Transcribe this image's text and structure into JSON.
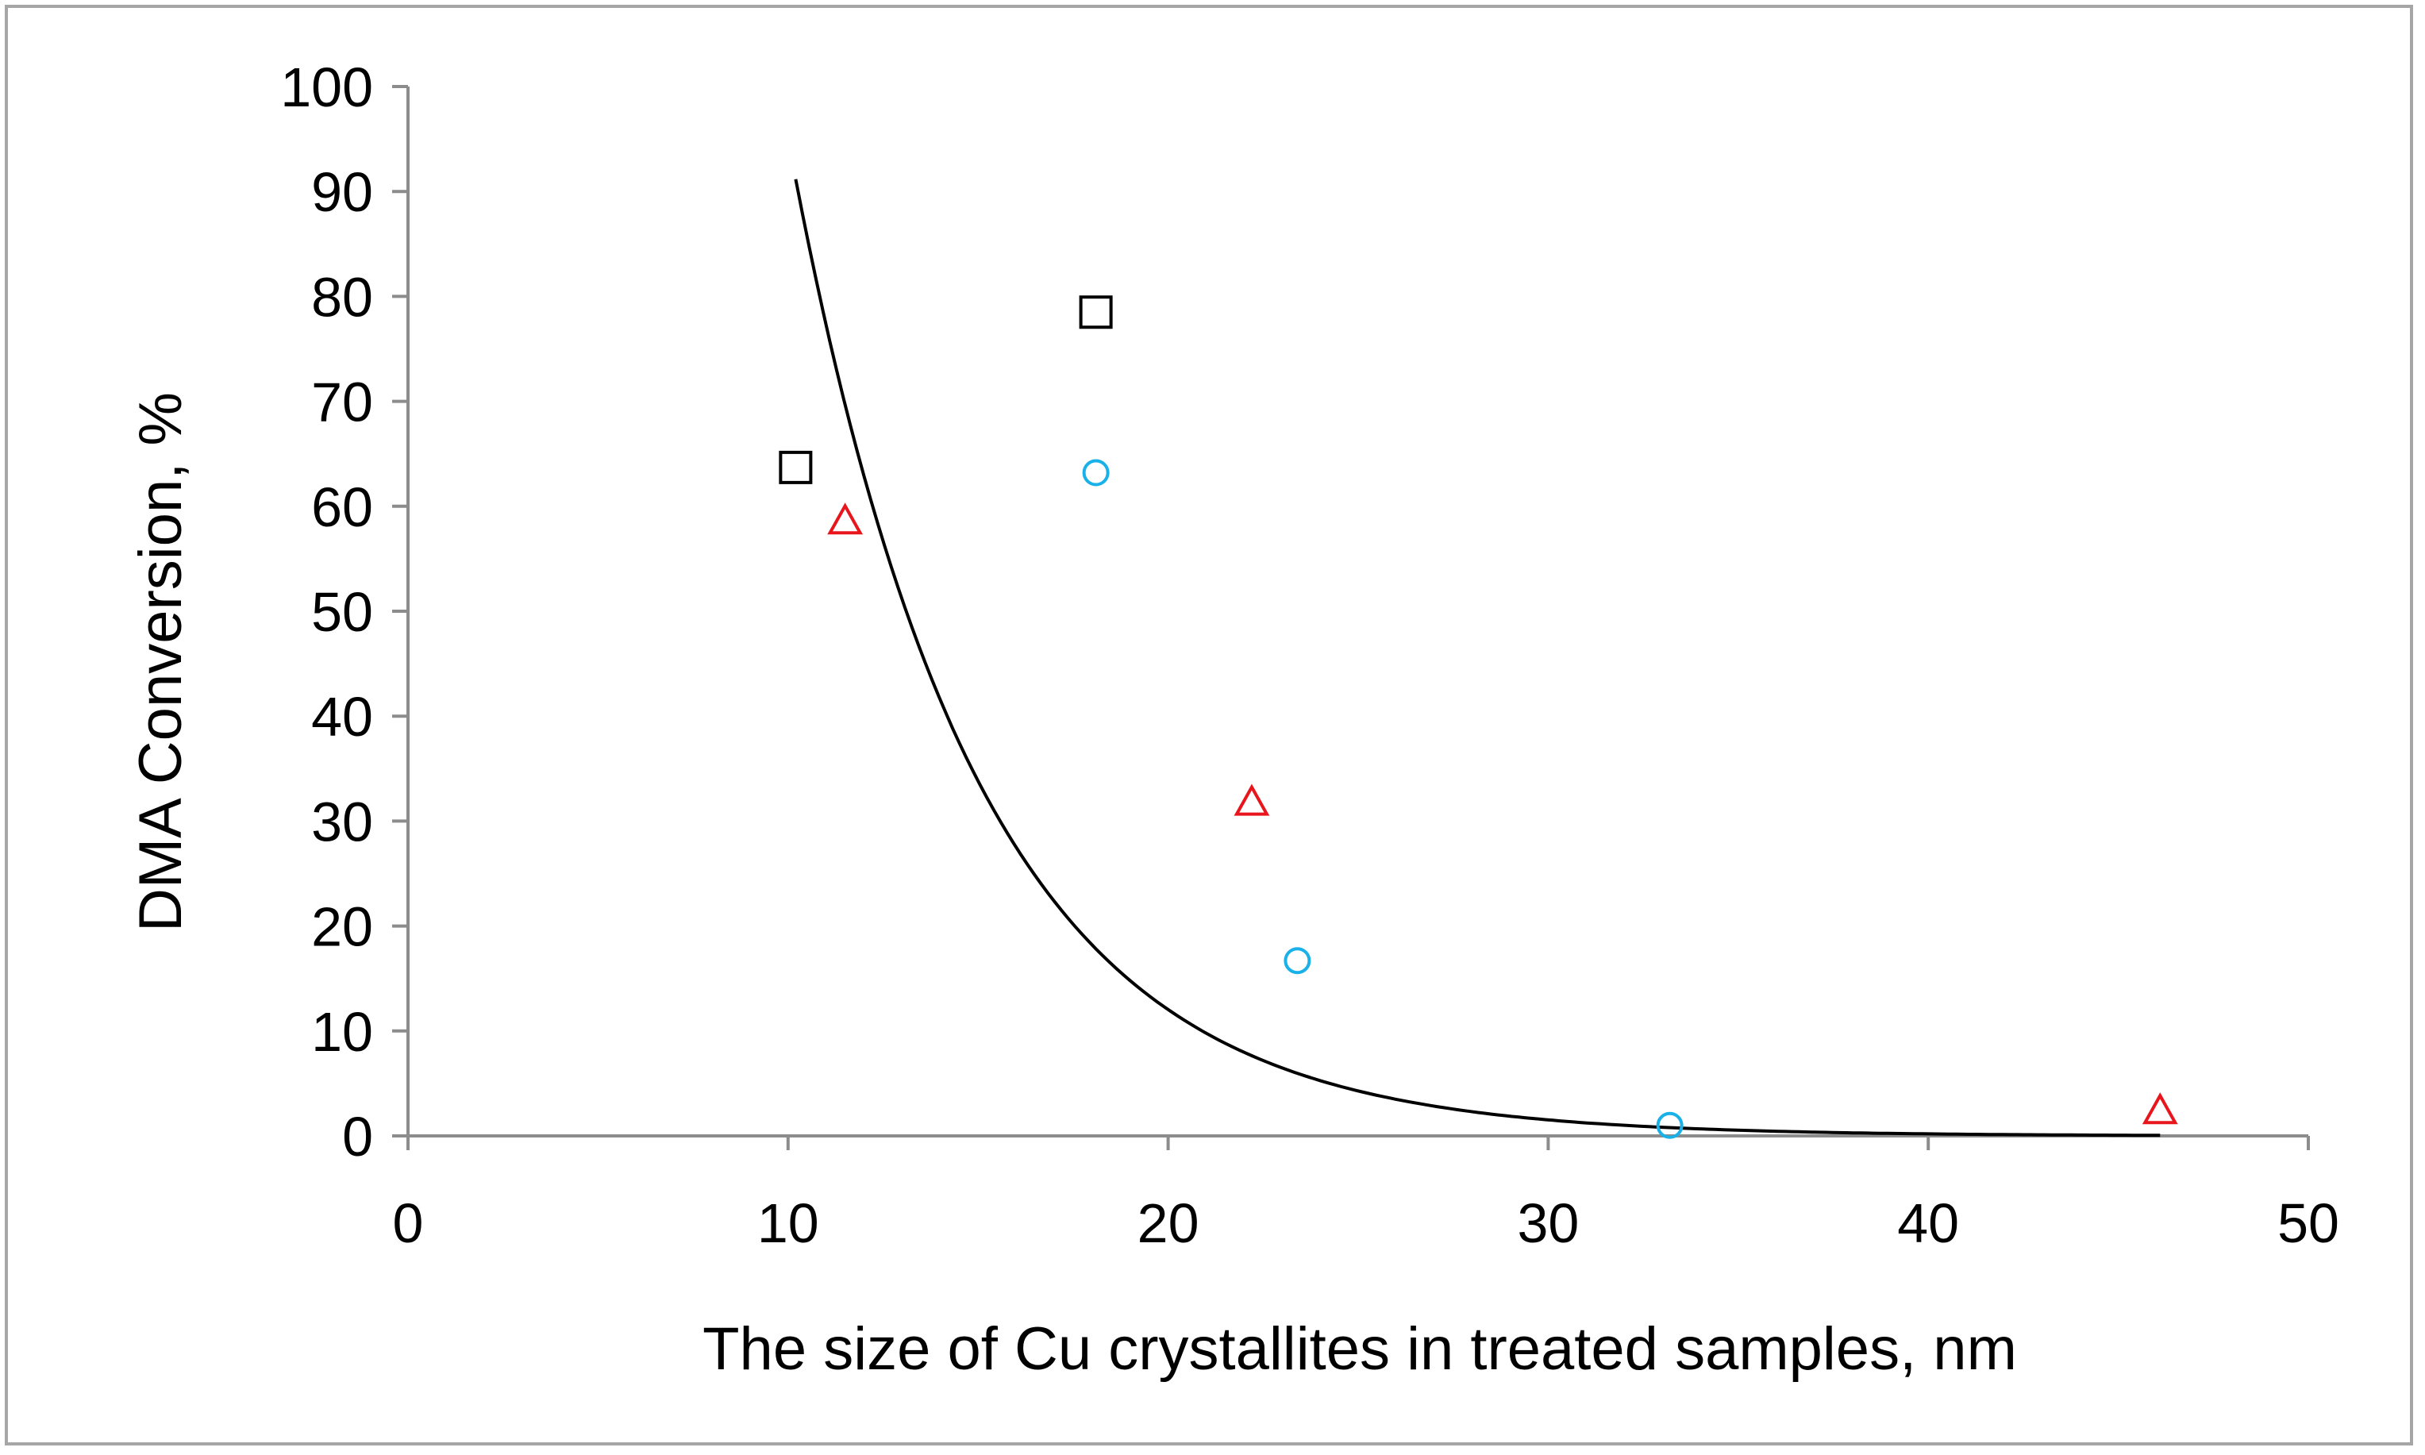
{
  "chart_data": {
    "type": "scatter",
    "title": "",
    "xlabel": "The size of Cu crystallites in treated samples, nm",
    "ylabel": "DMA Conversion, %",
    "xlim": [
      0,
      50
    ],
    "ylim": [
      0,
      100
    ],
    "xticks": [
      0,
      10,
      20,
      30,
      40,
      50
    ],
    "yticks": [
      0,
      10,
      20,
      30,
      40,
      50,
      60,
      70,
      80,
      90,
      100
    ],
    "grid": false,
    "legend": "none",
    "series": [
      {
        "name": "squares",
        "marker": "square",
        "color": "#000000",
        "points": [
          {
            "x": 10.2,
            "y": 63.7
          },
          {
            "x": 18.1,
            "y": 78.5
          }
        ]
      },
      {
        "name": "circles",
        "marker": "circle",
        "color": "#1ab0e8",
        "points": [
          {
            "x": 18.1,
            "y": 63.2
          },
          {
            "x": 23.4,
            "y": 16.7
          },
          {
            "x": 33.2,
            "y": 1.0
          }
        ]
      },
      {
        "name": "triangles",
        "marker": "triangle",
        "color": "#e8161c",
        "points": [
          {
            "x": 11.5,
            "y": 58.6
          },
          {
            "x": 22.2,
            "y": 31.8
          },
          {
            "x": 46.1,
            "y": 2.4
          }
        ]
      }
    ],
    "trendline": {
      "type": "exponential",
      "color": "#000000",
      "a": 750,
      "b": -0.2066,
      "x_range": [
        10.2,
        46.1
      ]
    }
  }
}
